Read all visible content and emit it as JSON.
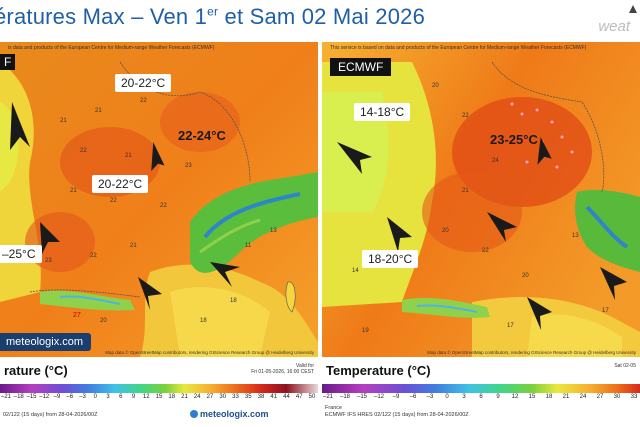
{
  "title": {
    "prefix": "ératures Max – Ven 1",
    "sup": "er",
    "suffix": " et Sam 02 Mai 2026"
  },
  "brand": "weat",
  "left_panel": {
    "credit": "is data and products of the European Centre for Medium-range Weather Forecasts (ECMWF)",
    "model": "F",
    "labels": {
      "north": "20-22°C",
      "east": "22-24°C",
      "center": "20-22°C",
      "southwest": "–25°C"
    },
    "site": "meteologix.com",
    "attribution": "Map data © OpenStreetMap contributors, rendering GIScience Research Group @ Heidelberg University"
  },
  "right_panel": {
    "credit": "This service is based on data and products of the European Centre for Medium-range Weather Forecasts (ECMWF)",
    "model": "ECMWF",
    "labels": {
      "northwest": "14-18°C",
      "east": "23-25°C",
      "southwest": "18-20°C"
    },
    "attribution": "Map data © OpenStreetMap contributors, rendering GIScience Research Group @ Heidelberg University"
  },
  "left_legend": {
    "title": "rature (°C)",
    "valid_label": "Valid for",
    "valid_time": "Fri 01-05-2026, 16:00 CEST",
    "ticks": [
      "–21",
      "–18",
      "–15",
      "–12",
      "–9",
      "–6",
      "–3",
      "0",
      "3",
      "6",
      "9",
      "12",
      "15",
      "18",
      "21",
      "24",
      "27",
      "30",
      "33",
      "35",
      "38",
      "41",
      "44",
      "47",
      "50"
    ],
    "run": "02/122 (15 days) from 28-04-2026/00Z",
    "logo": "meteologix.com"
  },
  "right_legend": {
    "title": "Temperature (°C)",
    "valid_time": "Sat 02-05",
    "ticks": [
      "–21",
      "–18",
      "–15",
      "–12",
      "–9",
      "–6",
      "–3",
      "0",
      "3",
      "6",
      "9",
      "12",
      "15",
      "18",
      "21",
      "24",
      "27",
      "30",
      "33"
    ],
    "region": "France",
    "run": "ECMWF IFS HRES 02/122 (15 days) from 28-04-2026/00Z"
  }
}
